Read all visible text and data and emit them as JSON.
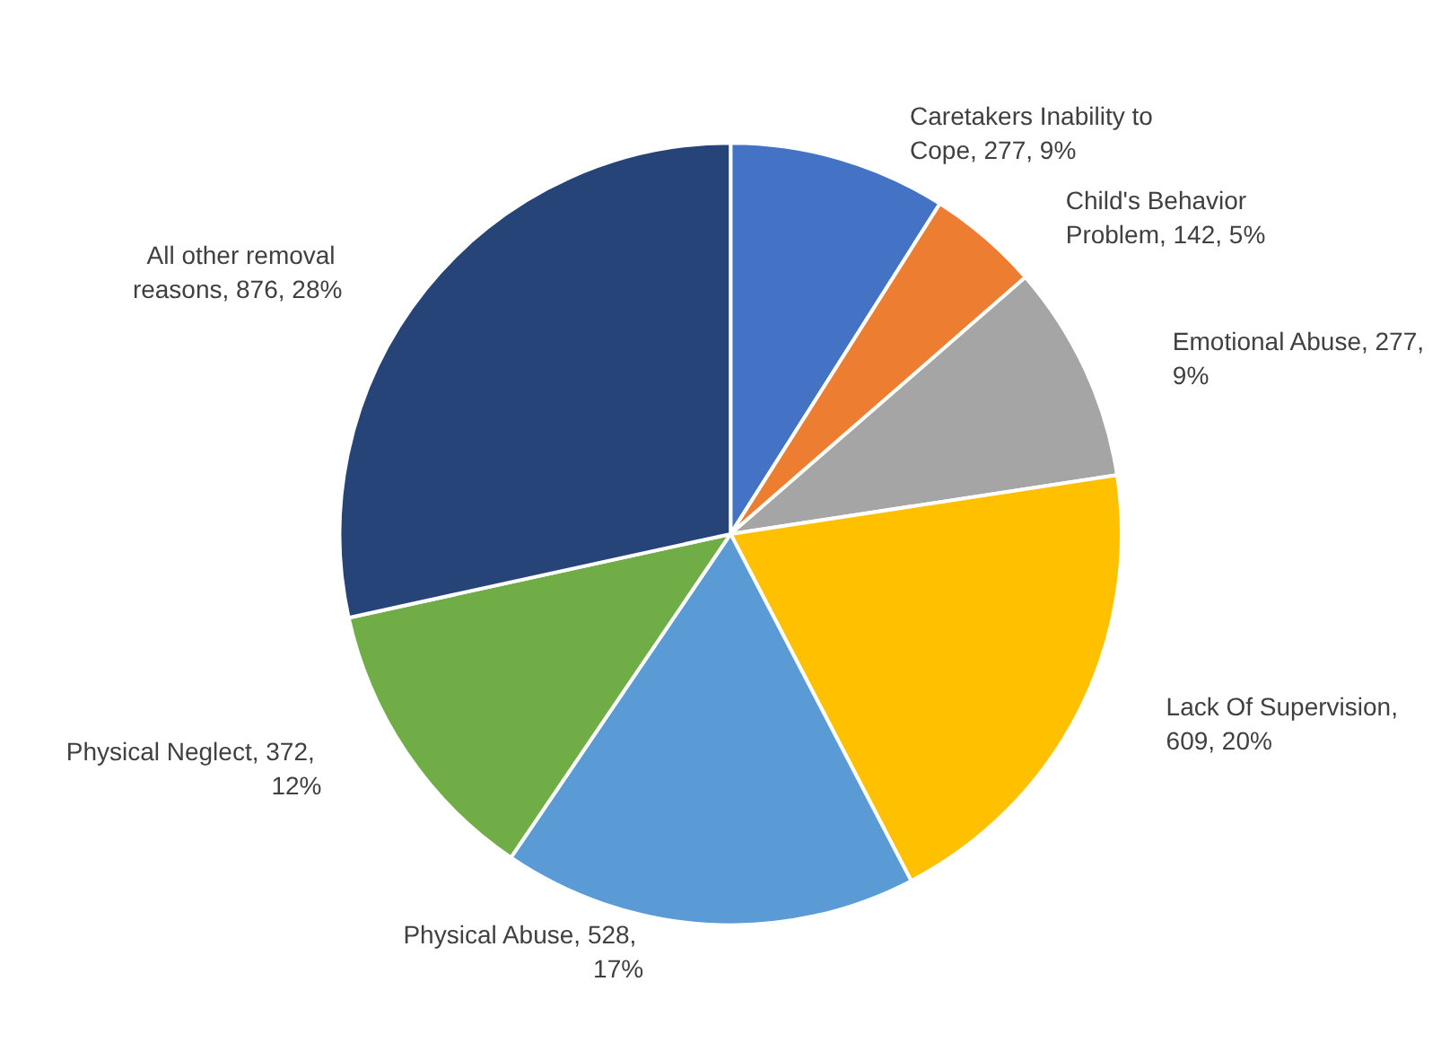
{
  "chart_data": {
    "type": "pie",
    "categories": [
      "Caretakers Inability to Cope",
      "Child's Behavior Problem",
      "Emotional Abuse",
      "Lack Of Supervision",
      "Physical Abuse",
      "Physical Neglect",
      "All other removal reasons"
    ],
    "values": [
      277,
      142,
      277,
      609,
      528,
      372,
      876
    ],
    "value_labels": [
      ", 277, 9%",
      ", 142, 5%",
      ", 277, 9%",
      ", 609, 20%",
      ", 528, 17%",
      ", 372, 12%",
      ", 876, 28%"
    ],
    "colors": [
      "#4472c4",
      "#ed7d31",
      "#a5a5a5",
      "#ffc000",
      "#5b9bd5",
      "#70ad47",
      "#264478"
    ],
    "legend": false
  }
}
